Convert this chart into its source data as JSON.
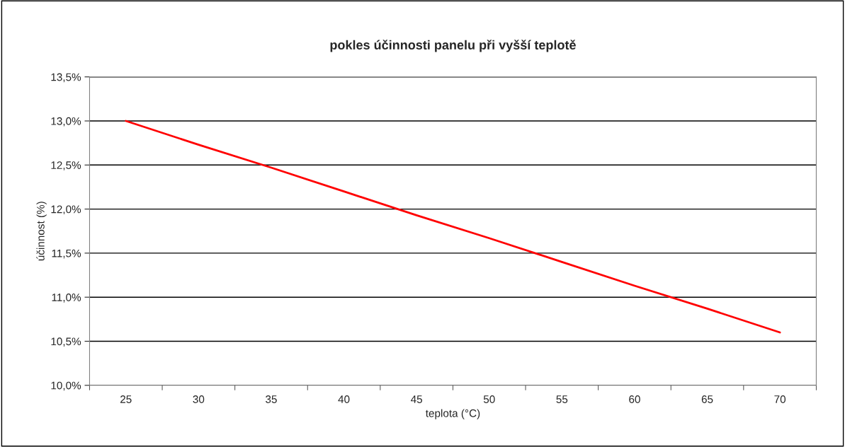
{
  "chart_data": {
    "type": "line",
    "title": "pokles účinnosti panelu při vyšší teplotě",
    "xlabel": "teplota (°C)",
    "ylabel": "účinnost (%)",
    "categories": [
      "25",
      "30",
      "35",
      "40",
      "45",
      "50",
      "55",
      "60",
      "65",
      "70"
    ],
    "series": [
      {
        "color": "#ff0000",
        "values": [
          13.0,
          12.73,
          12.47,
          12.2,
          11.93,
          11.67,
          11.4,
          11.13,
          10.87,
          10.6
        ]
      }
    ],
    "ylim": [
      10.0,
      13.5
    ],
    "yticks": [
      {
        "value": 10.0,
        "label": "10,0%"
      },
      {
        "value": 10.5,
        "label": "10,5%"
      },
      {
        "value": 11.0,
        "label": "11,0%"
      },
      {
        "value": 11.5,
        "label": "11,5%"
      },
      {
        "value": 12.0,
        "label": "12,0%"
      },
      {
        "value": 12.5,
        "label": "12,5%"
      },
      {
        "value": 13.0,
        "label": "13,0%"
      },
      {
        "value": 13.5,
        "label": "13,5%"
      }
    ],
    "grid": "y",
    "marker": "none",
    "line_style": "solid"
  }
}
